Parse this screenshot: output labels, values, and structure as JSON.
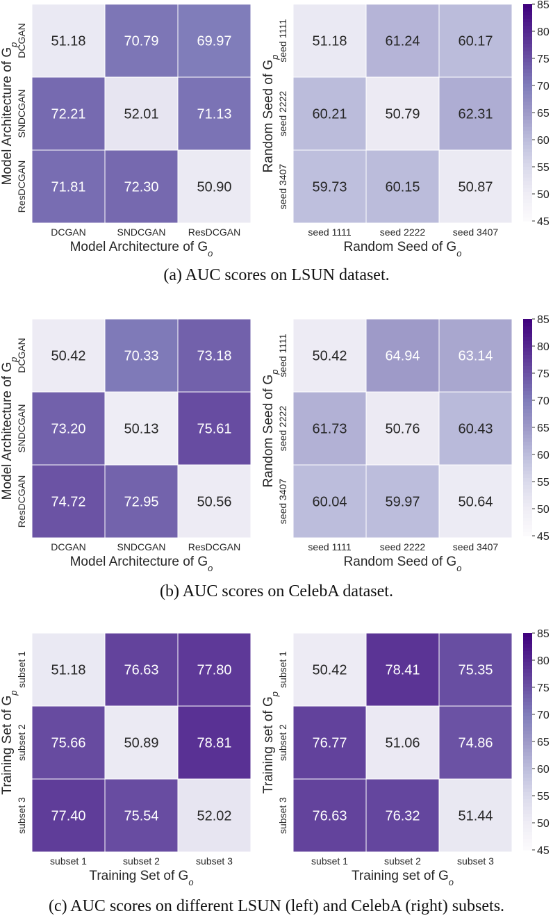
{
  "chart_data": [
    {
      "type": "heatmap",
      "title": "",
      "xlabel": "Model Architecture of G_o",
      "ylabel": "Model Architecture of G_p",
      "x_categories": [
        "DCGAN",
        "SNDCGAN",
        "ResDCGAN"
      ],
      "y_categories": [
        "DCGAN",
        "SNDCGAN",
        "ResDCGAN"
      ],
      "values": [
        [
          51.18,
          70.79,
          69.97
        ],
        [
          72.21,
          52.01,
          71.13
        ],
        [
          71.81,
          72.3,
          50.9
        ]
      ],
      "vrange": [
        45,
        85
      ]
    },
    {
      "type": "heatmap",
      "title": "",
      "xlabel": "Random Seed of G_o",
      "ylabel": "Random Seed of G_p",
      "x_categories": [
        "seed 1111",
        "seed 2222",
        "seed 3407"
      ],
      "y_categories": [
        "seed 1111",
        "seed 2222",
        "seed 3407"
      ],
      "values": [
        [
          51.18,
          61.24,
          60.17
        ],
        [
          60.21,
          50.79,
          62.31
        ],
        [
          59.73,
          60.15,
          50.87
        ]
      ],
      "vrange": [
        45,
        85
      ],
      "colorbar_ticks": [
        85,
        80,
        75,
        70,
        65,
        60,
        55,
        50,
        45
      ]
    },
    {
      "type": "heatmap",
      "title": "",
      "xlabel": "Model Architecture of G_o",
      "ylabel": "Model Architecture of G_p",
      "x_categories": [
        "DCGAN",
        "SNDCGAN",
        "ResDCGAN"
      ],
      "y_categories": [
        "DCGAN",
        "SNDCGAN",
        "ResDCGAN"
      ],
      "values": [
        [
          50.42,
          70.33,
          73.18
        ],
        [
          73.2,
          50.13,
          75.61
        ],
        [
          74.72,
          72.95,
          50.56
        ]
      ],
      "vrange": [
        45,
        85
      ]
    },
    {
      "type": "heatmap",
      "title": "",
      "xlabel": "Random Seed of G_o",
      "ylabel": "Random Seed of G_p",
      "x_categories": [
        "seed 1111",
        "seed 2222",
        "seed 3407"
      ],
      "y_categories": [
        "seed 1111",
        "seed 2222",
        "seed 3407"
      ],
      "values": [
        [
          50.42,
          64.94,
          63.14
        ],
        [
          61.73,
          50.76,
          60.43
        ],
        [
          60.04,
          59.97,
          50.64
        ]
      ],
      "vrange": [
        45,
        85
      ],
      "colorbar_ticks": [
        85,
        80,
        75,
        70,
        65,
        60,
        55,
        50,
        45
      ]
    },
    {
      "type": "heatmap",
      "title": "",
      "xlabel": "Training Set of G_o",
      "ylabel": "Training Set of G_p",
      "x_categories": [
        "subset 1",
        "subset 2",
        "subset 3"
      ],
      "y_categories": [
        "subset 1",
        "subset 2",
        "subset 3"
      ],
      "values": [
        [
          51.18,
          76.63,
          77.8
        ],
        [
          75.66,
          50.89,
          78.81
        ],
        [
          77.4,
          75.54,
          52.02
        ]
      ],
      "vrange": [
        45,
        85
      ]
    },
    {
      "type": "heatmap",
      "title": "",
      "xlabel": "Training set of G_o",
      "ylabel": "Training set of G_p",
      "x_categories": [
        "subset 1",
        "subset 2",
        "subset 3"
      ],
      "y_categories": [
        "subset 1",
        "subset 2",
        "subset 3"
      ],
      "values": [
        [
          50.42,
          78.41,
          75.35
        ],
        [
          76.77,
          51.06,
          74.86
        ],
        [
          76.63,
          76.32,
          51.44
        ]
      ],
      "vrange": [
        45,
        85
      ],
      "colorbar_ticks": [
        85,
        80,
        75,
        70,
        65,
        60,
        55,
        50,
        45
      ]
    }
  ],
  "captions": {
    "a": "(a)  AUC scores on LSUN dataset.",
    "b": "(b)  AUC scores on CelebA dataset.",
    "c": "(c)  AUC scores on different LSUN (left) and CelebA (right) subsets."
  },
  "colors": {
    "low": "#fcfbfd",
    "high": "#3f007d"
  }
}
